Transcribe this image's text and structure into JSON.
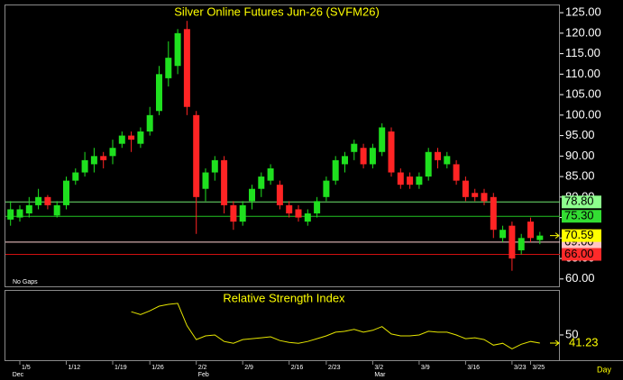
{
  "chart_data": [
    {
      "type": "candlestick",
      "title": "Silver Online Futures Jun-26 (SVFM26)",
      "annotation": "No Gaps",
      "xlabel": "Day",
      "categories": [
        null,
        "1/5",
        null,
        null,
        null,
        null,
        "1/12",
        null,
        null,
        null,
        null,
        "1/19",
        null,
        null,
        null,
        "1/26",
        null,
        null,
        null,
        null,
        "2/2",
        null,
        null,
        null,
        null,
        "2/9",
        null,
        null,
        null,
        null,
        "2/16",
        null,
        null,
        null,
        "2/23",
        null,
        null,
        null,
        null,
        "3/2",
        null,
        null,
        null,
        null,
        "3/9",
        null,
        null,
        null,
        null,
        "3/16",
        null,
        null,
        null,
        null,
        "3/23",
        null,
        "3/25",
        null
      ],
      "months": [
        "Dec",
        null,
        null,
        null,
        null,
        null,
        null,
        null,
        null,
        null,
        null,
        null,
        null,
        null,
        null,
        null,
        null,
        null,
        null,
        null,
        "Feb",
        null,
        null,
        null,
        null,
        null,
        null,
        null,
        null,
        null,
        null,
        null,
        null,
        null,
        null,
        null,
        null,
        null,
        null,
        "Mar",
        null,
        null,
        null,
        null,
        null,
        null,
        null,
        null,
        null,
        null,
        null,
        null,
        null,
        null,
        null,
        null,
        null,
        null
      ],
      "open": [
        74.5,
        75,
        76,
        78,
        80,
        75.5,
        78,
        84,
        86,
        88,
        90,
        90,
        93,
        95,
        93,
        96,
        101,
        109,
        112,
        121,
        100,
        82,
        86,
        89,
        78,
        74,
        79,
        82,
        84,
        83,
        78,
        77,
        74,
        76,
        80,
        84,
        88,
        91,
        92,
        88,
        91,
        96,
        86,
        85,
        83,
        85,
        91,
        88,
        88,
        84,
        81,
        81,
        80,
        70,
        73,
        67,
        74,
        69.5
      ],
      "high": [
        79,
        78,
        80,
        82,
        80.5,
        79,
        85,
        87,
        91,
        92,
        91,
        94,
        96,
        96,
        97,
        102,
        112,
        118,
        121,
        123,
        101,
        87,
        90,
        90,
        79,
        79,
        83,
        86,
        88,
        84,
        79,
        78,
        77,
        80,
        85,
        90,
        91,
        94,
        93,
        93,
        98,
        97,
        87,
        86,
        86,
        92,
        92,
        91,
        89,
        85,
        82,
        82,
        81,
        73,
        74,
        71,
        75,
        71.5
      ],
      "low": [
        73,
        74,
        75,
        77,
        77,
        75,
        77,
        83,
        85,
        86,
        87,
        88,
        92,
        91,
        92,
        95,
        100,
        107,
        110,
        100,
        71,
        79,
        84,
        76,
        72,
        73,
        77,
        80,
        83,
        77,
        75,
        74,
        73,
        75,
        79,
        83,
        86,
        89,
        87,
        87,
        90,
        85,
        82,
        82,
        82,
        84,
        87,
        87,
        83,
        79,
        79,
        78,
        70,
        69,
        62,
        66,
        69,
        68.5
      ],
      "close": [
        77,
        77,
        78,
        80,
        78,
        78,
        84,
        86,
        89,
        90,
        89,
        92,
        95,
        94,
        96,
        100,
        110,
        114,
        120,
        102,
        80,
        86,
        89,
        78,
        74,
        78,
        82,
        85,
        87,
        78,
        76,
        75,
        76,
        79,
        84,
        89,
        90,
        93,
        88,
        92,
        97,
        86,
        83,
        83,
        85,
        91,
        89,
        90,
        84,
        80,
        80,
        79,
        72,
        72,
        65,
        70,
        70,
        70.59
      ],
      "up_color": "#1fe01f",
      "down_color": "#ff2424",
      "ylim": [
        58.2,
        127
      ],
      "yticks": [
        {
          "value": 60,
          "label": "60.00"
        },
        {
          "value": 65,
          "label": "65.00"
        },
        {
          "value": 70,
          "label": "70.00"
        },
        {
          "value": 75,
          "label": "75.00"
        },
        {
          "value": 80,
          "label": "80.00"
        },
        {
          "value": 85,
          "label": "85.00"
        },
        {
          "value": 90,
          "label": "90.00"
        },
        {
          "value": 95,
          "label": "95.00"
        },
        {
          "value": 100,
          "label": "100.00"
        },
        {
          "value": 105,
          "label": "105.00"
        },
        {
          "value": 110,
          "label": "110.00"
        },
        {
          "value": 115,
          "label": "115.00"
        },
        {
          "value": 120,
          "label": "120.00"
        },
        {
          "value": 125,
          "label": "125.00"
        }
      ],
      "levels": [
        {
          "value": 78.8,
          "label": "78.80",
          "color": "#6ee66e",
          "tag_color": "#8dff8d"
        },
        {
          "value": 75.3,
          "label": "75.30",
          "color": "#22c422",
          "tag_color": "#33dd33"
        },
        {
          "value": 69,
          "label": "69.00",
          "color": "#ffd2d2",
          "tag_color": "#ffc4c4"
        },
        {
          "value": 66,
          "label": "66.00",
          "color": "#d01010",
          "tag_color": "#ff2a2a"
        }
      ],
      "last": {
        "value": 70.59,
        "label": "70.59",
        "color": "#ffff00"
      }
    },
    {
      "type": "line",
      "title": "Relative Strength Index",
      "color": "#e6e600",
      "values": [
        null,
        null,
        null,
        null,
        null,
        null,
        null,
        null,
        null,
        null,
        null,
        null,
        null,
        75,
        72,
        76,
        81,
        83,
        84,
        60,
        45,
        49,
        50,
        43,
        41,
        45,
        46,
        47,
        48,
        44,
        42,
        41,
        43,
        46,
        49,
        53,
        54,
        56,
        53,
        55,
        59,
        51,
        49,
        49,
        50,
        54,
        53,
        53,
        50,
        46,
        47,
        45,
        39,
        41,
        35,
        40,
        43,
        41.23
      ],
      "ylim": [
        22.8,
        98.5
      ],
      "yticks": [
        50
      ],
      "last": {
        "value": 41.23,
        "label": "41.23",
        "color": "#ffff00"
      }
    }
  ]
}
